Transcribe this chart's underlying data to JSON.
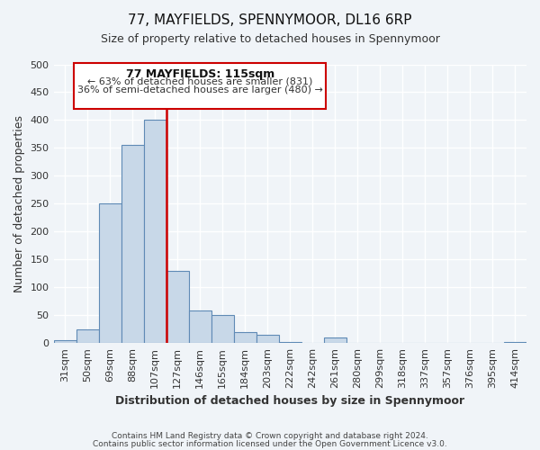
{
  "title": "77, MAYFIELDS, SPENNYMOOR, DL16 6RP",
  "subtitle": "Size of property relative to detached houses in Spennymoor",
  "xlabel": "Distribution of detached houses by size in Spennymoor",
  "ylabel": "Number of detached properties",
  "footer_line1": "Contains HM Land Registry data © Crown copyright and database right 2024.",
  "footer_line2": "Contains public sector information licensed under the Open Government Licence v3.0.",
  "bin_labels": [
    "31sqm",
    "50sqm",
    "69sqm",
    "88sqm",
    "107sqm",
    "127sqm",
    "146sqm",
    "165sqm",
    "184sqm",
    "203sqm",
    "222sqm",
    "242sqm",
    "261sqm",
    "280sqm",
    "299sqm",
    "318sqm",
    "337sqm",
    "357sqm",
    "376sqm",
    "395sqm",
    "414sqm"
  ],
  "bin_values": [
    5,
    25,
    250,
    355,
    400,
    130,
    58,
    50,
    20,
    15,
    2,
    0,
    10,
    0,
    0,
    0,
    0,
    0,
    0,
    0,
    2
  ],
  "bar_color": "#c8d8e8",
  "bar_edge_color": "#5f8ab5",
  "ylim": [
    0,
    500
  ],
  "yticks": [
    0,
    50,
    100,
    150,
    200,
    250,
    300,
    350,
    400,
    450,
    500
  ],
  "vline_color": "#cc0000",
  "annotation_title": "77 MAYFIELDS: 115sqm",
  "annotation_line1": "← 63% of detached houses are smaller (831)",
  "annotation_line2": "36% of semi-detached houses are larger (480) →",
  "annotation_box_color": "#cc0000",
  "background_color": "#f0f4f8",
  "grid_color": "#ffffff",
  "title_fontsize": 11,
  "subtitle_fontsize": 9,
  "xlabel_fontsize": 9,
  "ylabel_fontsize": 9,
  "tick_fontsize": 8
}
